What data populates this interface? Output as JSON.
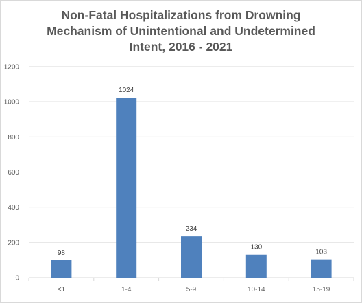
{
  "chart_data": {
    "type": "bar",
    "title_lines": [
      "Non-Fatal Hospitalizations from Drowning",
      "Mechanism of Unintentional and Undetermined",
      "Intent,  2016 - 2021"
    ],
    "categories": [
      "<1",
      "1-4",
      "5-9",
      "10-14",
      "15-19"
    ],
    "values": [
      98,
      1024,
      234,
      130,
      103
    ],
    "data_labels": [
      "98",
      "1024",
      "234",
      "130",
      "103"
    ],
    "ylim": [
      0,
      1200
    ],
    "yticks": [
      0,
      200,
      400,
      600,
      800,
      1000,
      1200
    ],
    "grid": true,
    "legend": "none",
    "bar_color": "#4f81bd",
    "grid_color": "#d9d9d9"
  }
}
